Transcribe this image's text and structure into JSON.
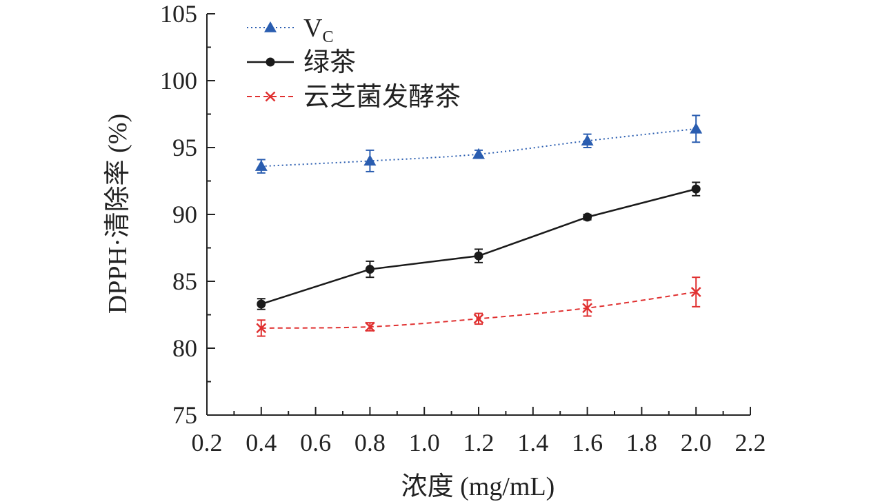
{
  "chart_data": {
    "type": "line",
    "xlabel": "浓度 (mg/mL)",
    "ylabel": "DPPH·清除率 (%)",
    "xlim": [
      0.2,
      2.2
    ],
    "ylim": [
      75,
      105
    ],
    "x_ticks": [
      "0.2",
      "0.4",
      "0.6",
      "0.8",
      "1.0",
      "1.2",
      "1.4",
      "1.6",
      "1.8",
      "2.0",
      "2.2"
    ],
    "y_ticks": [
      "75",
      "80",
      "85",
      "90",
      "95",
      "100",
      "105"
    ],
    "grid": false,
    "legend_position": "top-left",
    "x": [
      0.4,
      0.8,
      1.2,
      1.6,
      2.0
    ],
    "series": [
      {
        "name": "VC",
        "legend_main": "V",
        "legend_sub": "C",
        "color": "#2a5db0",
        "marker": "triangle",
        "line_style": "dotted",
        "values": [
          93.6,
          94.0,
          94.5,
          95.5,
          96.4
        ],
        "errors": [
          0.5,
          0.8,
          0.3,
          0.5,
          1.0
        ]
      },
      {
        "name": "绿茶",
        "color": "#1a1a1a",
        "marker": "circle",
        "line_style": "solid",
        "values": [
          83.3,
          85.9,
          86.9,
          89.8,
          91.9
        ],
        "errors": [
          0.4,
          0.6,
          0.5,
          0.2,
          0.5
        ]
      },
      {
        "name": "云芝菌发酵茶",
        "color": "#e03030",
        "marker": "cross",
        "line_style": "dashed",
        "values": [
          81.5,
          81.6,
          82.2,
          83.0,
          84.2
        ],
        "errors": [
          0.6,
          0.3,
          0.4,
          0.6,
          1.1
        ]
      }
    ]
  }
}
